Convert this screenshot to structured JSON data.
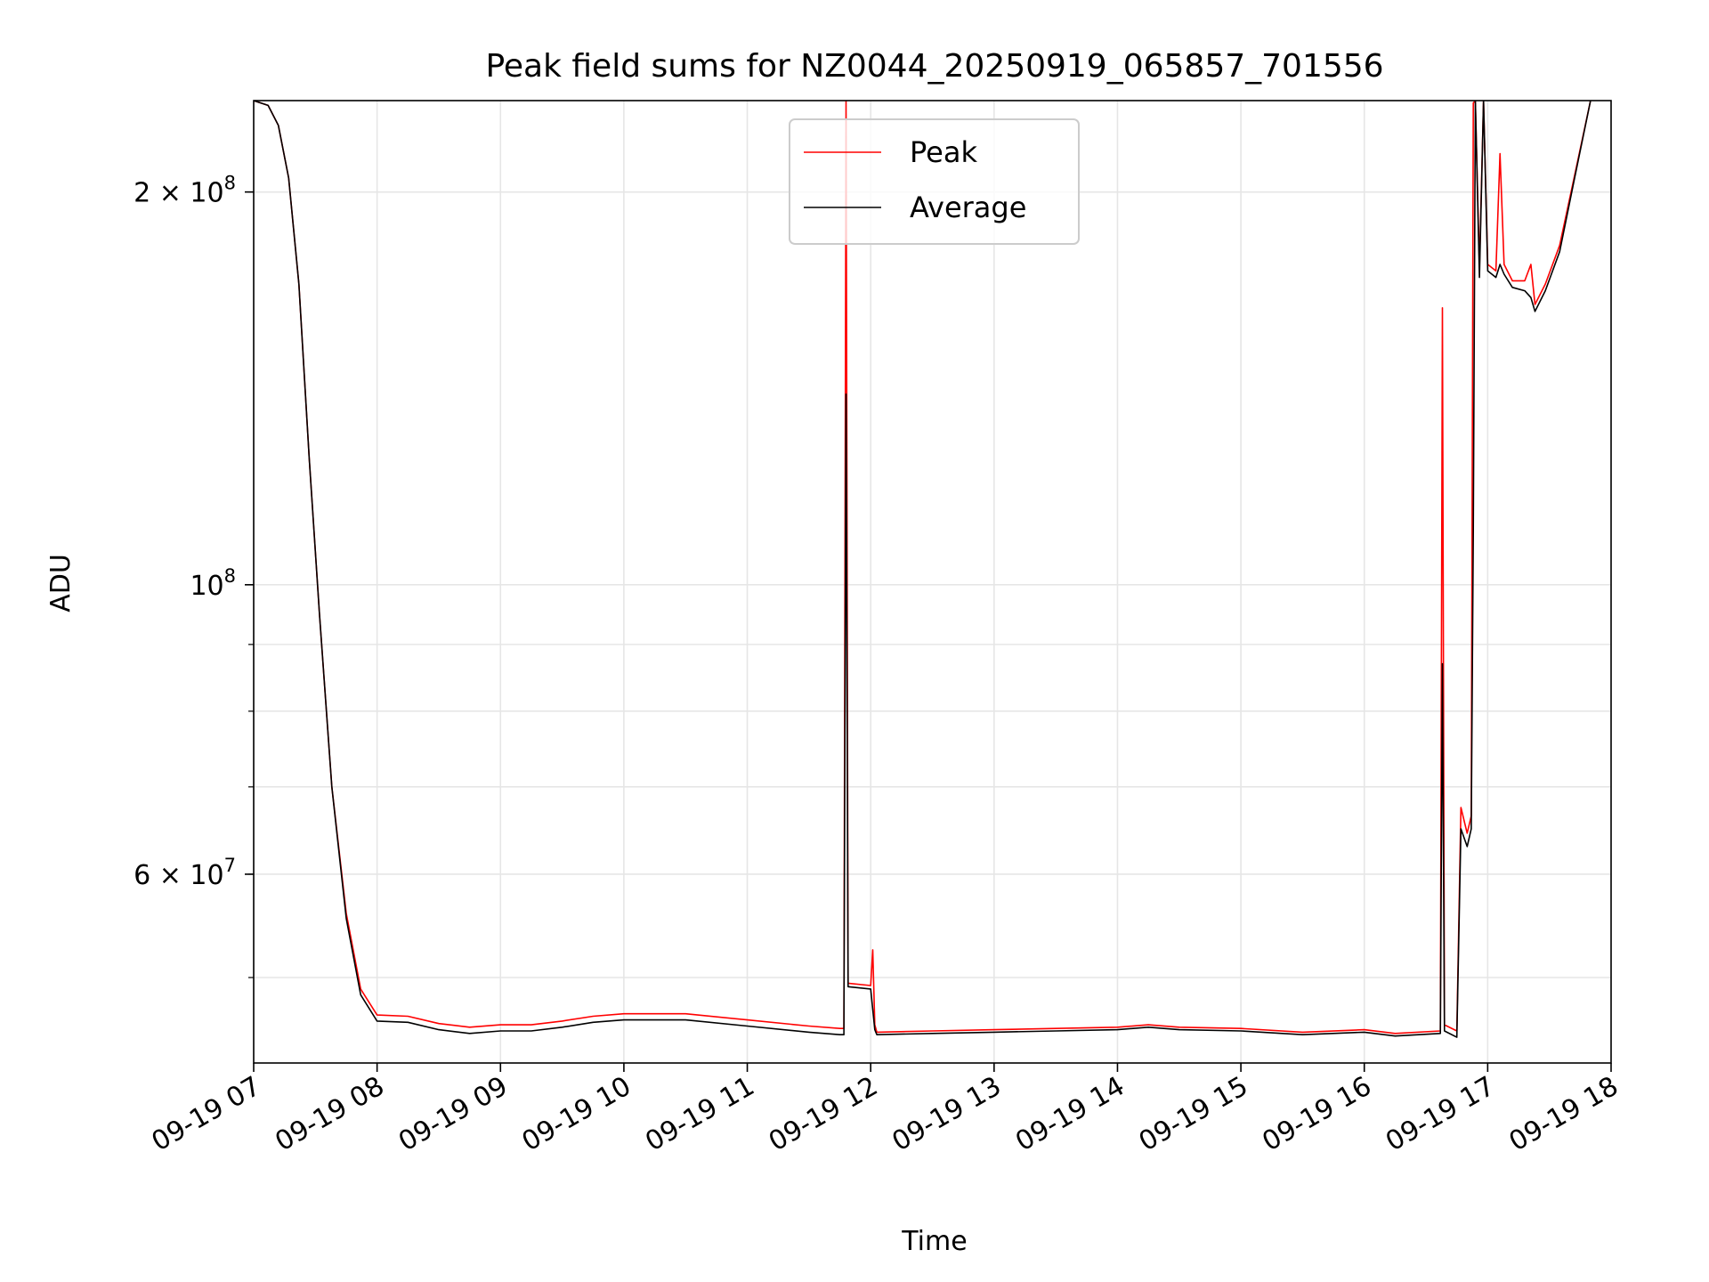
{
  "chart_data": {
    "type": "line",
    "title": "Peak field sums for NZ0044_20250919_065857_701556",
    "xlabel": "Time",
    "ylabel": "ADU",
    "yscale": "log",
    "ylim": [
      43000000,
      235000000
    ],
    "xlim": [
      "09-19 07:00",
      "09-19 18:00"
    ],
    "grid": true,
    "legend": {
      "position": "upper center",
      "entries": [
        "Peak",
        "Average"
      ]
    },
    "x_ticks": [
      "09-19 07",
      "09-19 08",
      "09-19 09",
      "09-19 10",
      "09-19 11",
      "09-19 12",
      "09-19 13",
      "09-19 14",
      "09-19 15",
      "09-19 16",
      "09-19 17",
      "09-19 18"
    ],
    "y_ticks": [
      {
        "value": 60000000,
        "label": "6 × 10",
        "exp": "7"
      },
      {
        "value": 100000000,
        "label": "10",
        "exp": "8"
      },
      {
        "value": 200000000,
        "label": "2 × 10",
        "exp": "8"
      }
    ],
    "series": [
      {
        "name": "Peak",
        "color": "#ff0000",
        "points": [
          [
            "09-19 07:00",
            235000000
          ],
          [
            "09-19 07:07",
            233000000
          ],
          [
            "09-19 07:12",
            225000000
          ],
          [
            "09-19 07:17",
            205000000
          ],
          [
            "09-19 07:22",
            170000000
          ],
          [
            "09-19 07:27",
            125000000
          ],
          [
            "09-19 07:32",
            95000000
          ],
          [
            "09-19 07:38",
            70000000
          ],
          [
            "09-19 07:45",
            56000000
          ],
          [
            "09-19 07:52",
            49000000
          ],
          [
            "09-19 08:00",
            46800000
          ],
          [
            "09-19 08:15",
            46700000
          ],
          [
            "09-19 08:30",
            46100000
          ],
          [
            "09-19 08:45",
            45800000
          ],
          [
            "09-19 09:00",
            46000000
          ],
          [
            "09-19 09:15",
            46000000
          ],
          [
            "09-19 09:30",
            46300000
          ],
          [
            "09-19 09:45",
            46700000
          ],
          [
            "09-19 10:00",
            46900000
          ],
          [
            "09-19 10:30",
            46900000
          ],
          [
            "09-19 11:00",
            46400000
          ],
          [
            "09-19 11:30",
            45900000
          ],
          [
            "09-19 11:45",
            45700000
          ],
          [
            "09-19 11:47",
            45700000
          ],
          [
            "09-19 11:48",
            235000000
          ],
          [
            "09-19 11:49",
            49500000
          ],
          [
            "09-19 12:00",
            49300000
          ],
          [
            "09-19 12:01",
            52500000
          ],
          [
            "09-19 12:02",
            46000000
          ],
          [
            "09-19 12:03",
            45400000
          ],
          [
            "09-19 12:30",
            45500000
          ],
          [
            "09-19 13:00",
            45600000
          ],
          [
            "09-19 13:30",
            45700000
          ],
          [
            "09-19 14:00",
            45800000
          ],
          [
            "09-19 14:15",
            46000000
          ],
          [
            "09-19 14:30",
            45800000
          ],
          [
            "09-19 15:00",
            45700000
          ],
          [
            "09-19 15:30",
            45400000
          ],
          [
            "09-19 16:00",
            45600000
          ],
          [
            "09-19 16:15",
            45300000
          ],
          [
            "09-19 16:37",
            45500000
          ],
          [
            "09-19 16:38",
            163000000
          ],
          [
            "09-19 16:39",
            46000000
          ],
          [
            "09-19 16:45",
            45500000
          ],
          [
            "09-19 16:47",
            67500000
          ],
          [
            "09-19 16:50",
            64500000
          ],
          [
            "09-19 16:52",
            66500000
          ],
          [
            "09-19 16:53",
            234000000
          ],
          [
            "09-19 16:54",
            235000000
          ],
          [
            "09-19 16:56",
            175000000
          ],
          [
            "09-19 16:58",
            235000000
          ],
          [
            "09-19 17:00",
            176000000
          ],
          [
            "09-19 17:04",
            174000000
          ],
          [
            "09-19 17:06",
            214000000
          ],
          [
            "09-19 17:08",
            176000000
          ],
          [
            "09-19 17:12",
            171000000
          ],
          [
            "09-19 17:18",
            171000000
          ],
          [
            "09-19 17:21",
            176000000
          ],
          [
            "09-19 17:23",
            164000000
          ],
          [
            "09-19 17:28",
            170000000
          ],
          [
            "09-19 17:35",
            182000000
          ],
          [
            "09-19 17:42",
            205000000
          ],
          [
            "09-19 17:50",
            235000000
          ]
        ]
      },
      {
        "name": "Average",
        "color": "#000000",
        "points": [
          [
            "09-19 07:00",
            235000000
          ],
          [
            "09-19 07:07",
            233000000
          ],
          [
            "09-19 07:12",
            225000000
          ],
          [
            "09-19 07:17",
            205000000
          ],
          [
            "09-19 07:22",
            170000000
          ],
          [
            "09-19 07:27",
            125000000
          ],
          [
            "09-19 07:32",
            95000000
          ],
          [
            "09-19 07:38",
            70000000
          ],
          [
            "09-19 07:45",
            55500000
          ],
          [
            "09-19 07:52",
            48500000
          ],
          [
            "09-19 08:00",
            46300000
          ],
          [
            "09-19 08:15",
            46200000
          ],
          [
            "09-19 08:30",
            45600000
          ],
          [
            "09-19 08:45",
            45300000
          ],
          [
            "09-19 09:00",
            45500000
          ],
          [
            "09-19 09:15",
            45500000
          ],
          [
            "09-19 09:30",
            45800000
          ],
          [
            "09-19 09:45",
            46200000
          ],
          [
            "09-19 10:00",
            46400000
          ],
          [
            "09-19 10:30",
            46400000
          ],
          [
            "09-19 11:00",
            45900000
          ],
          [
            "09-19 11:30",
            45400000
          ],
          [
            "09-19 11:45",
            45200000
          ],
          [
            "09-19 11:47",
            45200000
          ],
          [
            "09-19 11:48",
            140000000
          ],
          [
            "09-19 11:49",
            49200000
          ],
          [
            "09-19 12:00",
            49000000
          ],
          [
            "09-19 12:02",
            45600000
          ],
          [
            "09-19 12:03",
            45200000
          ],
          [
            "09-19 12:30",
            45300000
          ],
          [
            "09-19 13:00",
            45400000
          ],
          [
            "09-19 13:30",
            45500000
          ],
          [
            "09-19 14:00",
            45600000
          ],
          [
            "09-19 14:15",
            45800000
          ],
          [
            "09-19 14:30",
            45600000
          ],
          [
            "09-19 15:00",
            45500000
          ],
          [
            "09-19 15:30",
            45200000
          ],
          [
            "09-19 16:00",
            45400000
          ],
          [
            "09-19 16:15",
            45100000
          ],
          [
            "09-19 16:37",
            45300000
          ],
          [
            "09-19 16:38",
            87000000
          ],
          [
            "09-19 16:39",
            45500000
          ],
          [
            "09-19 16:45",
            45000000
          ],
          [
            "09-19 16:47",
            65000000
          ],
          [
            "09-19 16:50",
            63000000
          ],
          [
            "09-19 16:52",
            65000000
          ],
          [
            "09-19 16:53",
            110000000
          ],
          [
            "09-19 16:54",
            235000000
          ],
          [
            "09-19 16:56",
            172000000
          ],
          [
            "09-19 16:58",
            235000000
          ],
          [
            "09-19 17:00",
            174000000
          ],
          [
            "09-19 17:04",
            172000000
          ],
          [
            "09-19 17:06",
            176000000
          ],
          [
            "09-19 17:08",
            173000000
          ],
          [
            "09-19 17:12",
            169000000
          ],
          [
            "09-19 17:18",
            168000000
          ],
          [
            "09-19 17:21",
            166000000
          ],
          [
            "09-19 17:23",
            162000000
          ],
          [
            "09-19 17:28",
            168000000
          ],
          [
            "09-19 17:35",
            180000000
          ],
          [
            "09-19 17:42",
            204000000
          ],
          [
            "09-19 17:50",
            235000000
          ]
        ]
      }
    ]
  }
}
